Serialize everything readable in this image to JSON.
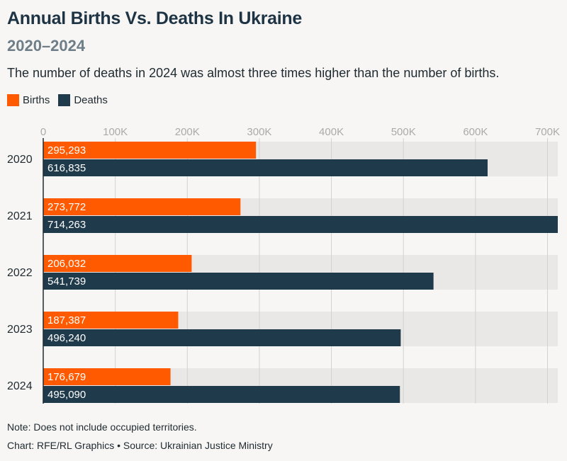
{
  "title": "Annual Births Vs. Deaths In Ukraine",
  "subtitle": "2020–2024",
  "description": "The number of deaths in 2024 was almost three times higher than the number of births.",
  "colors": {
    "births": "#ff5a00",
    "deaths": "#1e3a4b",
    "track": "#e9e8e6",
    "grid": "#d2d2d2",
    "tick_text": "#a9aaaa",
    "category_text": "#1f2a30",
    "axis_line": "#1f2a30"
  },
  "chart_data": {
    "type": "bar",
    "orientation": "horizontal",
    "categories": [
      "2020",
      "2021",
      "2022",
      "2023",
      "2024"
    ],
    "series": [
      {
        "name": "Births",
        "values": [
          295293,
          273772,
          206032,
          187387,
          176679
        ],
        "labels": [
          "295,293",
          "273,772",
          "206,032",
          "187,387",
          "176,679"
        ]
      },
      {
        "name": "Deaths",
        "values": [
          616835,
          714263,
          541739,
          496240,
          495090
        ],
        "labels": [
          "616,835",
          "714,263",
          "541,739",
          "496,240",
          "495,090"
        ]
      }
    ],
    "x_ticks": [
      0,
      100000,
      200000,
      300000,
      400000,
      500000,
      600000,
      700000
    ],
    "x_tick_labels": [
      "0",
      "100K",
      "200K",
      "300K",
      "400K",
      "500K",
      "600K",
      "700K"
    ],
    "xlim": [
      0,
      714263
    ],
    "grid": true,
    "legend_position": "top-left"
  },
  "footer": {
    "note": "Note: Does not include occupied territories.",
    "credit": "Chart: RFE/RL Graphics • Source: Ukrainian Justice Ministry"
  }
}
